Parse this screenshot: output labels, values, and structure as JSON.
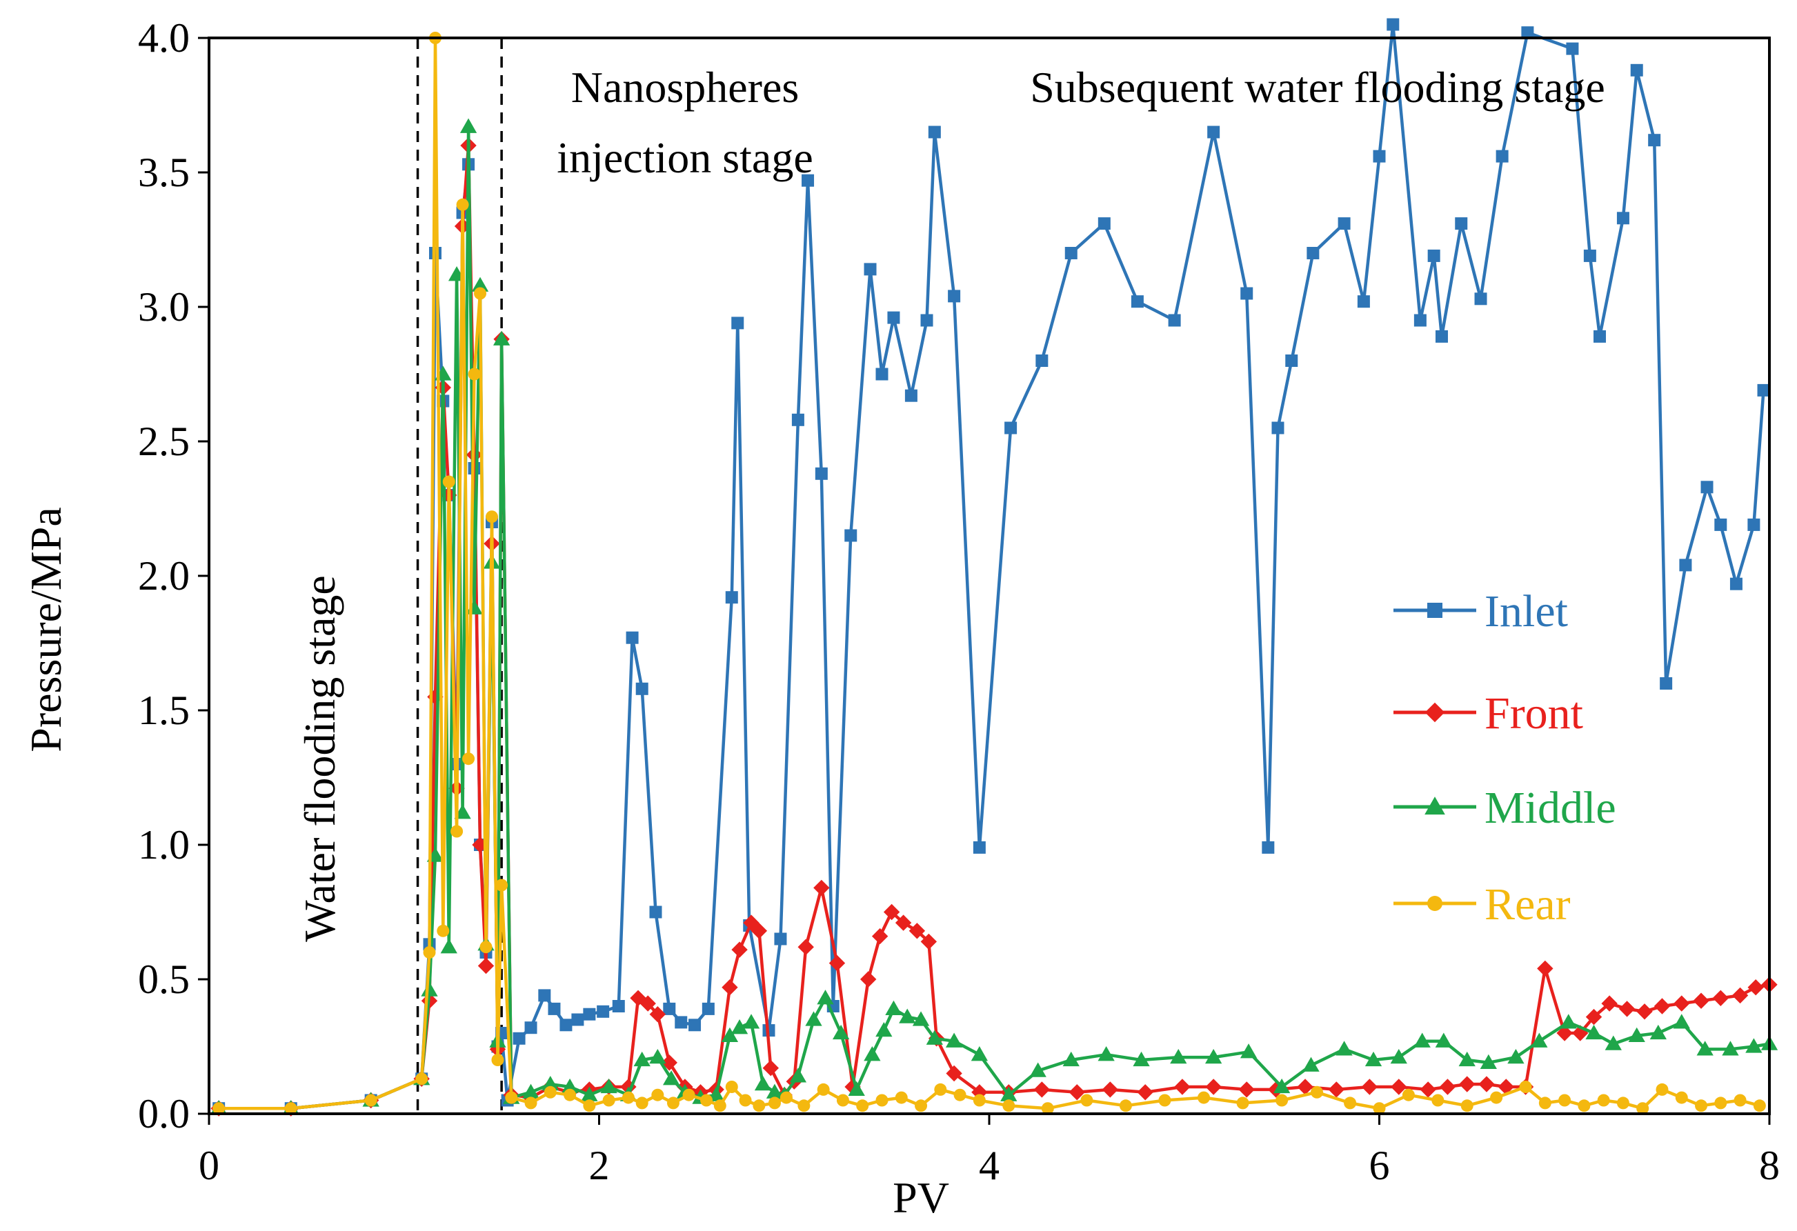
{
  "chart_data": {
    "type": "line",
    "title": "",
    "xlabel": "PV",
    "ylabel": "Pressure/MPa",
    "xlim": [
      0,
      8
    ],
    "ylim": [
      0,
      4
    ],
    "xticks": [
      0,
      2,
      4,
      6,
      8
    ],
    "xtick_labels": [
      "0",
      "2",
      "4",
      "6",
      "8"
    ],
    "yticks": [
      0,
      0.5,
      1,
      1.5,
      2,
      2.5,
      3,
      3.5,
      4
    ],
    "ytick_labels": [
      "0.0",
      "0.5",
      "1.0",
      "1.5",
      "2.0",
      "2.5",
      "3.0",
      "3.5",
      "4.0"
    ],
    "grid": false,
    "legend_position": "right",
    "stage_dividers": [
      1.07,
      1.5
    ],
    "annotations": [
      {
        "id": "water-flooding",
        "lines": [
          "Water flooding stage"
        ]
      },
      {
        "id": "nanospheres",
        "lines": [
          "Nanospheres",
          "injection stage"
        ]
      },
      {
        "id": "subsequent",
        "lines": [
          "Subsequent water flooding stage"
        ]
      }
    ],
    "series": [
      {
        "name": "Inlet",
        "color": "#2E75B6",
        "marker": "square",
        "x": [
          0.05,
          0.42,
          0.83,
          1.09,
          1.13,
          1.16,
          1.2,
          1.23,
          1.27,
          1.3,
          1.33,
          1.36,
          1.39,
          1.42,
          1.45,
          1.48,
          1.5,
          1.53,
          1.59,
          1.65,
          1.72,
          1.77,
          1.83,
          1.89,
          1.95,
          2.02,
          2.1,
          2.17,
          2.22,
          2.29,
          2.36,
          2.42,
          2.49,
          2.56,
          2.68,
          2.71,
          2.77,
          2.87,
          2.93,
          3.02,
          3.07,
          3.14,
          3.2,
          3.29,
          3.39,
          3.45,
          3.51,
          3.6,
          3.68,
          3.72,
          3.82,
          3.95,
          4.11,
          4.27,
          4.42,
          4.59,
          4.76,
          4.95,
          5.15,
          5.32,
          5.43,
          5.48,
          5.55,
          5.66,
          5.82,
          5.92,
          6.0,
          6.07,
          6.21,
          6.28,
          6.32,
          6.42,
          6.52,
          6.63,
          6.76,
          6.99,
          7.08,
          7.13,
          7.25,
          7.32,
          7.41,
          7.47,
          7.57,
          7.68,
          7.75,
          7.83,
          7.92,
          7.97
        ],
        "values": [
          0.02,
          0.02,
          0.05,
          0.13,
          0.63,
          3.2,
          2.65,
          2.3,
          1.3,
          3.35,
          3.53,
          2.4,
          1.0,
          0.6,
          2.2,
          0.25,
          0.3,
          0.05,
          0.28,
          0.32,
          0.44,
          0.39,
          0.33,
          0.35,
          0.37,
          0.38,
          0.4,
          1.77,
          1.58,
          0.75,
          0.39,
          0.34,
          0.33,
          0.39,
          1.92,
          2.94,
          0.7,
          0.31,
          0.65,
          2.58,
          3.47,
          2.38,
          0.4,
          2.15,
          3.14,
          2.75,
          2.96,
          2.67,
          2.95,
          3.65,
          3.04,
          0.99,
          2.55,
          2.8,
          3.2,
          3.31,
          3.02,
          2.95,
          3.65,
          3.05,
          0.99,
          2.55,
          2.8,
          3.2,
          3.31,
          3.02,
          3.56,
          4.05,
          2.95,
          3.19,
          2.89,
          3.31,
          3.03,
          3.56,
          4.02,
          3.96,
          3.19,
          2.89,
          3.33,
          3.88,
          3.62,
          1.6,
          2.04,
          2.33,
          2.19,
          1.97,
          2.19,
          2.69
        ]
      },
      {
        "name": "Front",
        "color": "#E8211D",
        "marker": "diamond",
        "x": [
          0.05,
          0.42,
          0.83,
          1.09,
          1.13,
          1.16,
          1.2,
          1.23,
          1.27,
          1.3,
          1.33,
          1.36,
          1.39,
          1.42,
          1.45,
          1.48,
          1.5,
          1.55,
          1.65,
          1.75,
          1.85,
          1.95,
          2.05,
          2.15,
          2.2,
          2.25,
          2.3,
          2.36,
          2.44,
          2.52,
          2.6,
          2.67,
          2.72,
          2.78,
          2.82,
          2.88,
          2.95,
          3.0,
          3.06,
          3.14,
          3.22,
          3.3,
          3.38,
          3.44,
          3.5,
          3.56,
          3.63,
          3.69,
          3.73,
          3.82,
          3.95,
          4.1,
          4.27,
          4.45,
          4.62,
          4.8,
          4.99,
          5.15,
          5.32,
          5.47,
          5.62,
          5.78,
          5.95,
          6.1,
          6.25,
          6.35,
          6.45,
          6.55,
          6.65,
          6.75,
          6.85,
          6.95,
          7.03,
          7.1,
          7.18,
          7.27,
          7.36,
          7.45,
          7.55,
          7.65,
          7.75,
          7.85,
          7.93,
          8.0
        ],
        "values": [
          0.02,
          0.02,
          0.05,
          0.13,
          0.42,
          1.55,
          2.7,
          2.3,
          1.21,
          3.3,
          3.6,
          2.45,
          1.0,
          0.55,
          2.12,
          0.24,
          2.88,
          0.07,
          0.06,
          0.1,
          0.08,
          0.09,
          0.1,
          0.1,
          0.43,
          0.41,
          0.37,
          0.19,
          0.1,
          0.08,
          0.09,
          0.47,
          0.61,
          0.71,
          0.68,
          0.17,
          0.07,
          0.12,
          0.62,
          0.84,
          0.56,
          0.1,
          0.5,
          0.66,
          0.75,
          0.71,
          0.68,
          0.64,
          0.28,
          0.15,
          0.08,
          0.08,
          0.09,
          0.08,
          0.09,
          0.08,
          0.1,
          0.1,
          0.09,
          0.09,
          0.1,
          0.09,
          0.1,
          0.1,
          0.09,
          0.1,
          0.11,
          0.11,
          0.1,
          0.1,
          0.54,
          0.3,
          0.3,
          0.36,
          0.41,
          0.39,
          0.38,
          0.4,
          0.41,
          0.42,
          0.43,
          0.44,
          0.47,
          0.48
        ]
      },
      {
        "name": "Middle",
        "color": "#1FA64A",
        "marker": "triangle",
        "x": [
          0.05,
          0.42,
          0.83,
          1.09,
          1.13,
          1.16,
          1.2,
          1.23,
          1.27,
          1.3,
          1.33,
          1.36,
          1.39,
          1.42,
          1.45,
          1.48,
          1.5,
          1.55,
          1.65,
          1.75,
          1.85,
          1.95,
          2.05,
          2.15,
          2.22,
          2.3,
          2.37,
          2.44,
          2.52,
          2.6,
          2.67,
          2.72,
          2.78,
          2.84,
          2.9,
          2.95,
          3.02,
          3.1,
          3.16,
          3.24,
          3.32,
          3.4,
          3.46,
          3.51,
          3.58,
          3.65,
          3.72,
          3.82,
          3.95,
          4.1,
          4.25,
          4.42,
          4.6,
          4.78,
          4.97,
          5.15,
          5.33,
          5.5,
          5.65,
          5.82,
          5.97,
          6.1,
          6.22,
          6.33,
          6.45,
          6.56,
          6.7,
          6.82,
          6.97,
          7.1,
          7.2,
          7.32,
          7.43,
          7.55,
          7.67,
          7.8,
          7.92,
          8.0
        ],
        "values": [
          0.02,
          0.02,
          0.05,
          0.13,
          0.46,
          0.96,
          2.75,
          0.62,
          3.12,
          1.12,
          3.67,
          1.88,
          3.08,
          0.63,
          2.05,
          0.27,
          2.88,
          0.06,
          0.08,
          0.11,
          0.1,
          0.07,
          0.1,
          0.07,
          0.2,
          0.21,
          0.13,
          0.08,
          0.06,
          0.07,
          0.29,
          0.32,
          0.34,
          0.11,
          0.08,
          0.07,
          0.14,
          0.35,
          0.43,
          0.3,
          0.09,
          0.22,
          0.31,
          0.39,
          0.36,
          0.35,
          0.28,
          0.27,
          0.22,
          0.07,
          0.16,
          0.2,
          0.22,
          0.2,
          0.21,
          0.21,
          0.23,
          0.1,
          0.18,
          0.24,
          0.2,
          0.21,
          0.27,
          0.27,
          0.2,
          0.19,
          0.21,
          0.27,
          0.34,
          0.3,
          0.26,
          0.29,
          0.3,
          0.34,
          0.24,
          0.24,
          0.25,
          0.26
        ]
      },
      {
        "name": "Rear",
        "color": "#F4B80F",
        "marker": "circle",
        "x": [
          0.05,
          0.42,
          0.83,
          1.09,
          1.13,
          1.16,
          1.2,
          1.23,
          1.27,
          1.3,
          1.33,
          1.36,
          1.39,
          1.42,
          1.45,
          1.48,
          1.5,
          1.55,
          1.65,
          1.75,
          1.85,
          1.95,
          2.05,
          2.15,
          2.22,
          2.3,
          2.38,
          2.46,
          2.55,
          2.62,
          2.68,
          2.75,
          2.82,
          2.9,
          2.96,
          3.05,
          3.15,
          3.25,
          3.35,
          3.45,
          3.55,
          3.65,
          3.75,
          3.85,
          3.95,
          4.1,
          4.3,
          4.5,
          4.7,
          4.9,
          5.1,
          5.3,
          5.5,
          5.68,
          5.85,
          6.0,
          6.15,
          6.3,
          6.45,
          6.6,
          6.75,
          6.85,
          6.95,
          7.05,
          7.15,
          7.25,
          7.35,
          7.45,
          7.55,
          7.65,
          7.75,
          7.85,
          7.95
        ],
        "values": [
          0.02,
          0.02,
          0.05,
          0.13,
          0.6,
          4.0,
          0.68,
          2.35,
          1.05,
          3.38,
          1.32,
          2.75,
          3.05,
          0.62,
          2.22,
          0.2,
          0.85,
          0.06,
          0.04,
          0.08,
          0.07,
          0.03,
          0.05,
          0.06,
          0.04,
          0.07,
          0.04,
          0.07,
          0.05,
          0.03,
          0.1,
          0.05,
          0.03,
          0.04,
          0.06,
          0.03,
          0.09,
          0.05,
          0.03,
          0.05,
          0.06,
          0.03,
          0.09,
          0.07,
          0.05,
          0.03,
          0.02,
          0.05,
          0.03,
          0.05,
          0.06,
          0.04,
          0.05,
          0.08,
          0.04,
          0.02,
          0.07,
          0.05,
          0.03,
          0.06,
          0.1,
          0.04,
          0.05,
          0.03,
          0.05,
          0.04,
          0.02,
          0.09,
          0.06,
          0.03,
          0.04,
          0.05,
          0.03
        ]
      }
    ]
  }
}
